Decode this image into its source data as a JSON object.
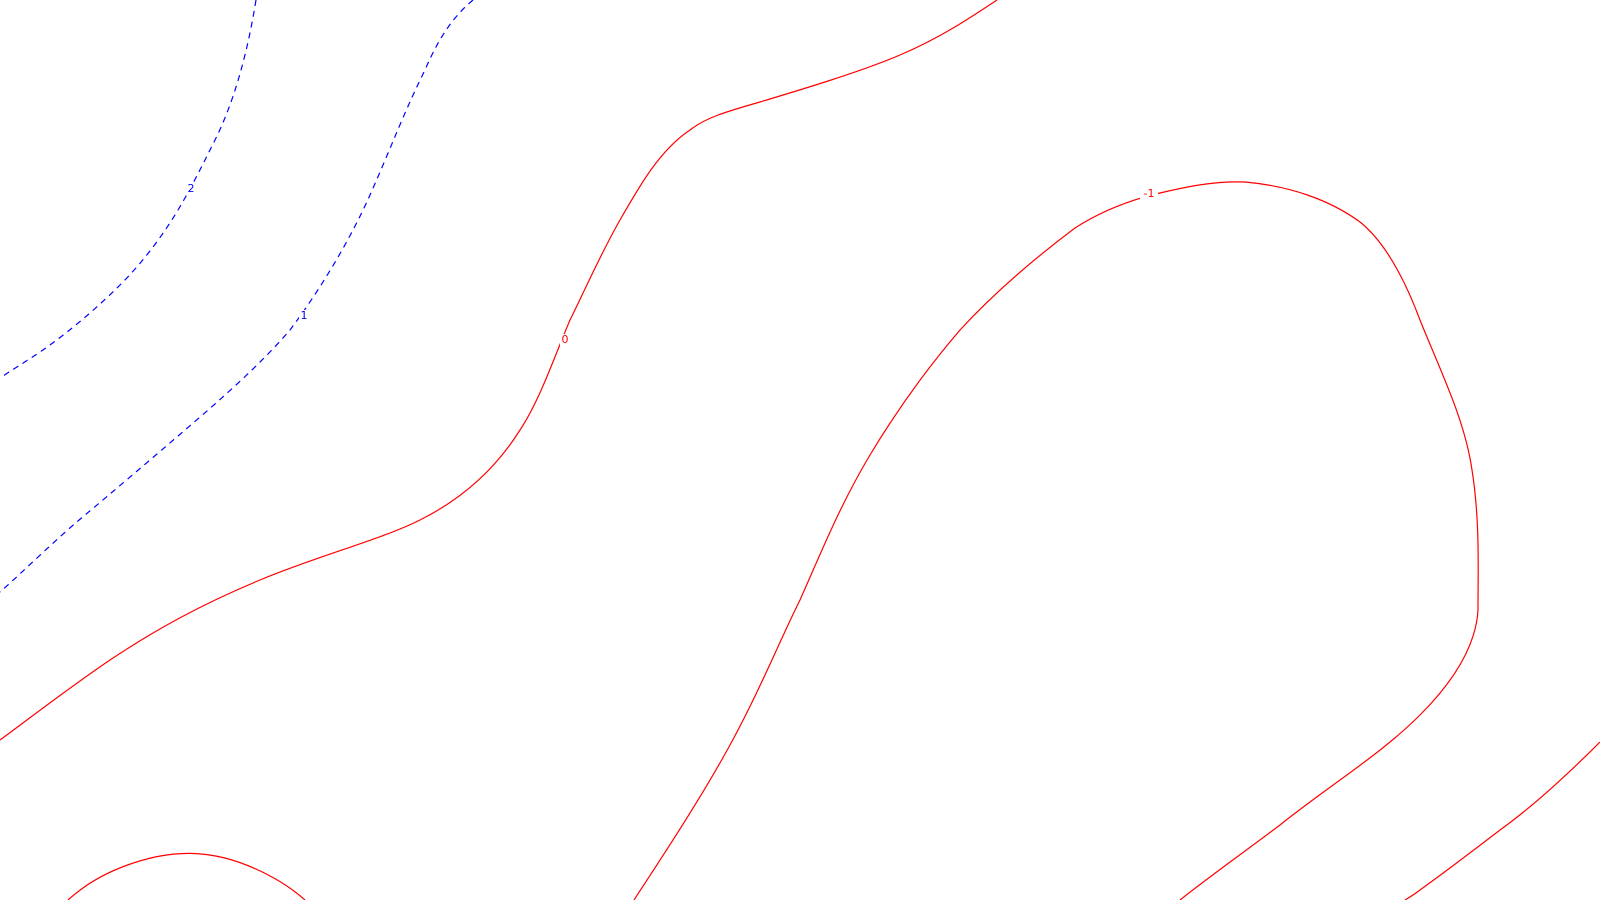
{
  "map": {
    "type": "contour-plot",
    "background_color": "#ffffff",
    "colors": {
      "positive": "#0000ff",
      "zero_or_negative": "#ff0000"
    },
    "line_styles": {
      "positive": "dashed",
      "zero_or_negative": "solid"
    },
    "contour_labels": [
      "2",
      "1",
      "0",
      "-1"
    ]
  }
}
